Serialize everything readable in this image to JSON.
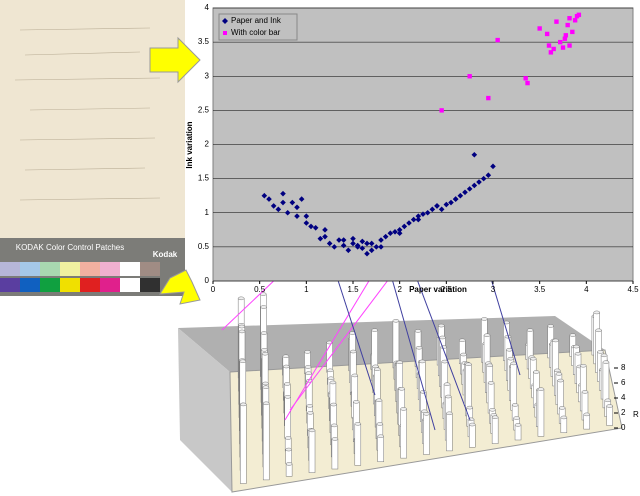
{
  "chart_data": {
    "type": "scatter",
    "xlabel": "Paper variation",
    "ylabel": "Ink variation",
    "xlim": [
      0,
      4.5
    ],
    "xticks": [
      0,
      0.5,
      1,
      1.5,
      2,
      2.5,
      3,
      3.5,
      4,
      4.5
    ],
    "ylim": [
      0,
      4
    ],
    "yticks": [
      0,
      0.5,
      1,
      1.5,
      2,
      2.5,
      3,
      3.5,
      4
    ],
    "grid": true,
    "legend": "upper-left",
    "series": [
      {
        "name": "Paper and Ink",
        "color": "#000080",
        "marker": "diamond",
        "x": [
          0.55,
          0.6,
          0.65,
          0.7,
          0.75,
          0.8,
          0.85,
          0.9,
          0.95,
          1.0,
          1.05,
          1.1,
          1.15,
          1.2,
          1.25,
          1.3,
          1.35,
          1.4,
          1.45,
          1.5,
          1.5,
          1.55,
          1.6,
          1.6,
          1.65,
          1.7,
          1.7,
          1.75,
          1.8,
          1.85,
          1.9,
          1.95,
          2.0,
          2.05,
          2.1,
          2.15,
          2.2,
          2.25,
          2.3,
          2.35,
          2.4,
          2.45,
          2.5,
          2.55,
          2.6,
          2.65,
          2.7,
          2.75,
          2.8,
          2.85,
          2.9,
          2.95,
          3.0,
          0.75,
          0.9,
          1.0,
          1.2,
          1.4,
          1.55,
          1.65,
          1.8,
          2.0,
          2.2,
          2.4,
          2.6,
          2.8
        ],
        "values": [
          1.25,
          1.2,
          1.1,
          1.05,
          1.28,
          1.0,
          1.15,
          0.95,
          1.2,
          0.85,
          0.8,
          0.78,
          0.62,
          0.65,
          0.55,
          0.5,
          0.6,
          0.52,
          0.45,
          0.55,
          0.62,
          0.5,
          0.48,
          0.58,
          0.4,
          0.55,
          0.45,
          0.5,
          0.6,
          0.65,
          0.7,
          0.72,
          0.75,
          0.8,
          0.85,
          0.9,
          0.95,
          0.98,
          1.0,
          1.05,
          1.1,
          1.05,
          1.12,
          1.15,
          1.2,
          1.25,
          1.3,
          1.35,
          1.4,
          1.45,
          1.5,
          1.55,
          1.68,
          1.15,
          1.08,
          0.95,
          0.75,
          0.6,
          0.52,
          0.55,
          0.5,
          0.7,
          0.9,
          1.1,
          1.2,
          1.85
        ]
      },
      {
        "name": "With color bar",
        "color": "#ff00ff",
        "marker": "square",
        "x": [
          2.45,
          2.75,
          2.95,
          3.05,
          3.35,
          3.37,
          3.5,
          3.58,
          3.62,
          3.65,
          3.68,
          3.72,
          3.75,
          3.78,
          3.8,
          3.82,
          3.85,
          3.88,
          3.9,
          3.92,
          3.82,
          3.77,
          3.6
        ],
        "values": [
          2.5,
          3.0,
          2.68,
          3.53,
          2.97,
          2.9,
          3.7,
          3.62,
          3.35,
          3.4,
          3.8,
          3.5,
          3.42,
          3.6,
          3.75,
          3.45,
          3.65,
          3.82,
          3.88,
          3.9,
          3.85,
          3.55,
          3.45
        ]
      }
    ]
  },
  "color_card": {
    "title": "KODAK Color Control Patches",
    "brand": "Kodak"
  },
  "surface_axis": {
    "ticks": [
      0,
      2,
      4,
      6,
      8
    ],
    "label": "R"
  }
}
